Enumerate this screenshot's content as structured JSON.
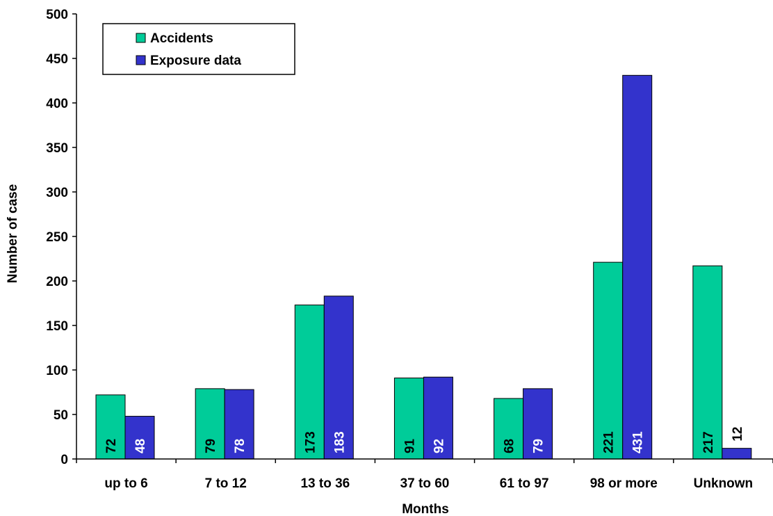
{
  "chart_data": {
    "type": "bar",
    "title": "",
    "xlabel": "Months",
    "ylabel": "Number of case",
    "categories": [
      "up to 6",
      "7 to 12",
      "13 to 36",
      "37 to 60",
      "61 to 97",
      "98 or more",
      "Unknown"
    ],
    "series": [
      {
        "name": "Accidents",
        "color": "#00cc99",
        "label_color": "#000000",
        "values": [
          72,
          79,
          173,
          91,
          68,
          221,
          217
        ]
      },
      {
        "name": "Exposure data",
        "color": "#3333cc",
        "label_color": "#ffffff",
        "values": [
          48,
          78,
          183,
          92,
          79,
          431,
          12
        ]
      }
    ],
    "ylim": [
      0,
      500
    ],
    "yticks": [
      0,
      50,
      100,
      150,
      200,
      250,
      300,
      350,
      400,
      450,
      500
    ],
    "grid": false,
    "legend": {
      "position": "top-left",
      "entries": [
        "Accidents",
        "Exposure data"
      ]
    },
    "data_labels": {
      "orientation": "vertical",
      "position": "inside-base"
    }
  }
}
